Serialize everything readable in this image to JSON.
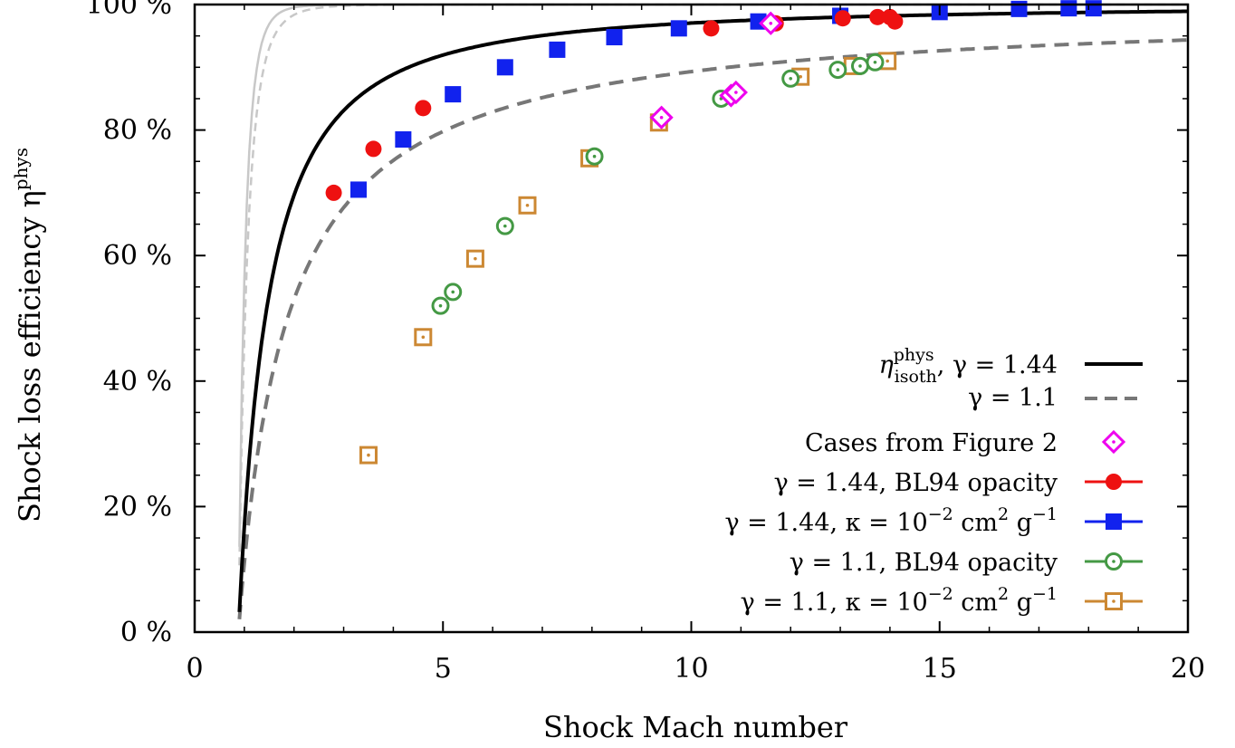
{
  "chart_data": {
    "type": "scatter",
    "xlabel": "Shock Mach number",
    "ylabel": "Shock loss efficiency η",
    "ylabel_sup": "phys",
    "xlim": [
      0,
      20
    ],
    "ylim": [
      0,
      100
    ],
    "x_ticks": [
      {
        "value": 0,
        "label": "0"
      },
      {
        "value": 5,
        "label": "5"
      },
      {
        "value": 10,
        "label": "10"
      },
      {
        "value": 15,
        "label": "15"
      },
      {
        "value": 20,
        "label": "20"
      }
    ],
    "y_ticks": [
      {
        "value": 0,
        "label": "0 %"
      },
      {
        "value": 20,
        "label": "20 %"
      },
      {
        "value": 40,
        "label": "40 %"
      },
      {
        "value": 60,
        "label": "60 %"
      },
      {
        "value": 80,
        "label": "80 %"
      },
      {
        "value": 100,
        "label": "100 %"
      }
    ],
    "grid": false,
    "legend_position": "lower-right",
    "curves": [
      {
        "id": "isoth_144",
        "gamma": 1.44,
        "color": "#000000",
        "dash": "solid",
        "in_legend": true,
        "legend_label": {
          "eta": "η",
          "sup": "phys",
          "sub": "isoth",
          "rest": ", γ = 1.44"
        }
      },
      {
        "id": "isoth_11",
        "gamma": 1.1,
        "color": "#777777",
        "dash": "dashed",
        "in_legend": true,
        "legend_label": {
          "text": "γ = 1.1"
        }
      },
      {
        "id": "grey_solid",
        "color": "#c8c8c8",
        "dash": "solid",
        "in_legend": false
      },
      {
        "id": "grey_dashed",
        "color": "#c8c8c8",
        "dash": "dashed",
        "in_legend": false
      }
    ],
    "series": [
      {
        "name": "Cases from Figure 2",
        "marker": "diamond-open-dot",
        "color": "#ee00ee",
        "points": [
          [
            9.4,
            82
          ],
          [
            10.8,
            85.5
          ],
          [
            10.9,
            86
          ],
          [
            11.6,
            97
          ]
        ]
      },
      {
        "name": "γ = 1.44, BL94 opacity",
        "marker": "circle-filled",
        "color": "#ee1111",
        "points": [
          [
            2.8,
            70
          ],
          [
            3.6,
            77
          ],
          [
            4.6,
            83.5
          ],
          [
            10.4,
            96.2
          ],
          [
            11.7,
            97
          ],
          [
            13.05,
            97.8
          ],
          [
            13.75,
            98
          ],
          [
            14.0,
            98
          ],
          [
            14.1,
            97.3
          ]
        ]
      },
      {
        "name": "γ = 1.44, κ = 10⁻² cm² g⁻¹",
        "marker": "square-filled",
        "color": "#1122ee",
        "points": [
          [
            3.3,
            70.5
          ],
          [
            4.2,
            78.5
          ],
          [
            5.2,
            85.7
          ],
          [
            6.25,
            90
          ],
          [
            7.3,
            92.8
          ],
          [
            8.45,
            94.8
          ],
          [
            9.75,
            96.2
          ],
          [
            11.35,
            97.3
          ],
          [
            13.0,
            98.2
          ],
          [
            15.0,
            98.8
          ],
          [
            16.6,
            99.3
          ],
          [
            17.6,
            99.4
          ],
          [
            18.1,
            99.4
          ]
        ]
      },
      {
        "name": "γ = 1.1, BL94 opacity",
        "marker": "circle-open-dot",
        "color": "#449944",
        "points": [
          [
            4.95,
            52
          ],
          [
            5.2,
            54.2
          ],
          [
            6.25,
            64.7
          ],
          [
            8.05,
            75.8
          ],
          [
            10.6,
            85
          ],
          [
            12.0,
            88.2
          ],
          [
            12.95,
            89.6
          ],
          [
            13.4,
            90.2
          ],
          [
            13.7,
            90.8
          ]
        ]
      },
      {
        "name": "γ = 1.1, κ = 10⁻² cm² g⁻¹",
        "marker": "square-open-dot",
        "color": "#cc8833",
        "points": [
          [
            3.5,
            28.2
          ],
          [
            4.6,
            47
          ],
          [
            5.65,
            59.5
          ],
          [
            6.7,
            68
          ],
          [
            7.95,
            75.5
          ],
          [
            9.35,
            81.2
          ],
          [
            12.2,
            88.5
          ],
          [
            13.25,
            90.2
          ],
          [
            13.95,
            91
          ]
        ]
      }
    ],
    "legend_series_labels": {
      "cases": "Cases from Figure 2",
      "bl94_144": "γ = 1.44, BL94 opacity",
      "kappa_144_pre": "γ = 1.44, κ = 10",
      "kappa_144_exp": "−2",
      "kappa_144_mid": " cm",
      "kappa_144_exp2": "2",
      "kappa_144_g": " g",
      "kappa_144_exp3": "−1",
      "bl94_11": "γ = 1.1, BL94 opacity",
      "kappa_11_pre": "γ = 1.1, κ = 10",
      "kappa_11_exp": "−2",
      "kappa_11_mid": " cm",
      "kappa_11_exp2": "2",
      "kappa_11_g": " g",
      "kappa_11_exp3": "−1"
    }
  }
}
